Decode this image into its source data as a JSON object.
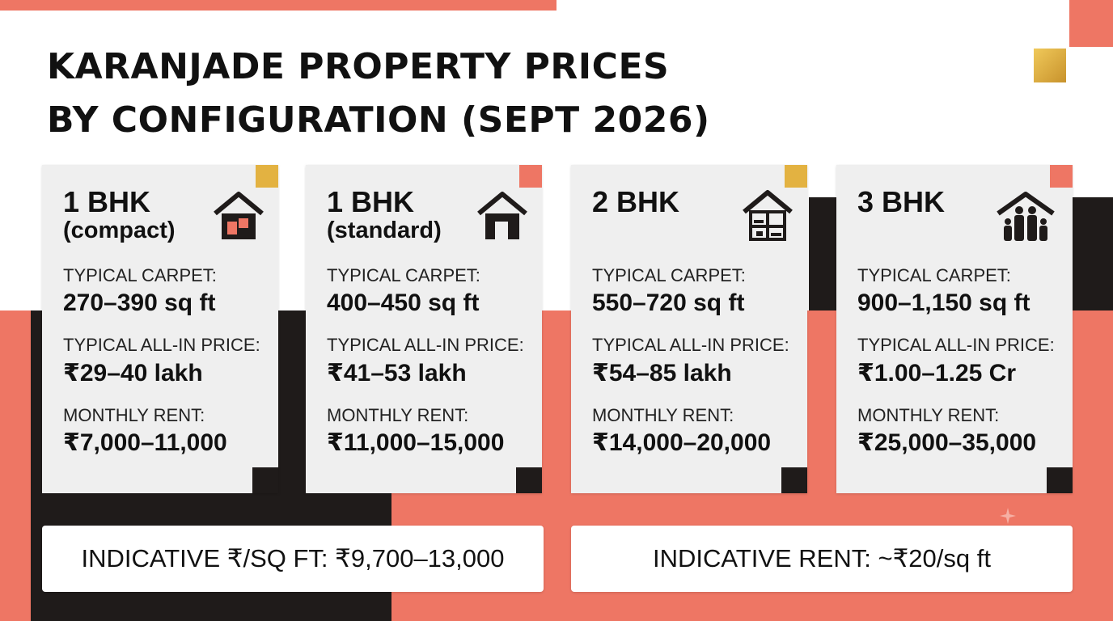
{
  "title": {
    "line1": "KARANJADE PROPERTY PRICES",
    "line2": "BY CONFIGURATION (SEPT 2026)"
  },
  "colors": {
    "coral": "#ee7664",
    "black": "#1f1b1a",
    "gold": "#e3b241",
    "card": "#efefef",
    "white": "#ffffff"
  },
  "cards": [
    {
      "heading": "1 BHK",
      "subheading": "(compact)",
      "icon": "house-door-icon",
      "carpet_label": "TYPICAL CARPET:",
      "carpet_value": "270–390 sq ft",
      "price_label": "TYPICAL ALL-IN PRICE:",
      "price_value": "₹29–40 lakh",
      "rent_label": "MONTHLY RENT:",
      "rent_value": "₹7,000–11,000"
    },
    {
      "heading": "1 BHK",
      "subheading": "(standard)",
      "icon": "house-icon",
      "carpet_label": "TYPICAL CARPET:",
      "carpet_value": "400–450 sq ft",
      "price_label": "TYPICAL ALL-IN PRICE:",
      "price_value": "₹41–53 lakh",
      "rent_label": "MONTHLY RENT:",
      "rent_value": "₹11,000–15,000"
    },
    {
      "heading": "2 BHK",
      "subheading": "",
      "icon": "house-rooms-icon",
      "carpet_label": "TYPICAL CARPET:",
      "carpet_value": "550–720 sq ft",
      "price_label": "TYPICAL ALL-IN PRICE:",
      "price_value": "₹54–85 lakh",
      "rent_label": "MONTHLY RENT:",
      "rent_value": "₹14,000–20,000"
    },
    {
      "heading": "3 BHK",
      "subheading": "",
      "icon": "house-family-icon",
      "carpet_label": "TYPICAL CARPET:",
      "carpet_value": "900–1,150 sq ft",
      "price_label": "TYPICAL ALL-IN PRICE:",
      "price_value": "₹1.00–1.25 Cr",
      "rent_label": "MONTHLY RENT:",
      "rent_value": "₹25,000–35,000"
    }
  ],
  "bottom": {
    "price_per_sqft": "INDICATIVE ₹/SQ FT: ₹9,700–13,000",
    "rent_per_sqft": "INDICATIVE RENT: ~₹20/sq ft"
  }
}
